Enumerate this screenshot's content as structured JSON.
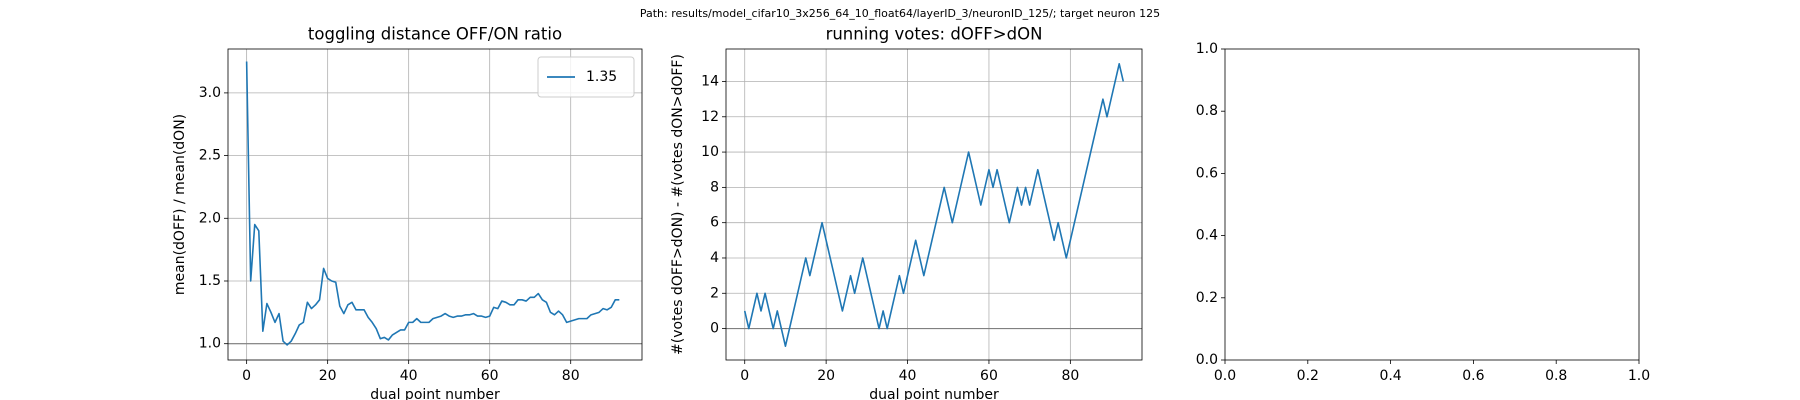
{
  "suptitle": "Path: results/model_cifar10_3x256_64_10_float64/layerID_3/neuronID_125/; target neuron 125",
  "chart_data": [
    {
      "type": "line",
      "title": "toggling distance OFF/ON ratio",
      "xlabel": "dual point number",
      "ylabel": "mean(dOFF) / mean(dON)",
      "x": [
        0,
        1,
        2,
        3,
        4,
        5,
        6,
        7,
        8,
        9,
        10,
        11,
        12,
        13,
        14,
        15,
        16,
        17,
        18,
        19,
        20,
        21,
        22,
        23,
        24,
        25,
        26,
        27,
        28,
        29,
        30,
        31,
        32,
        33,
        34,
        35,
        36,
        37,
        38,
        39,
        40,
        41,
        42,
        43,
        44,
        45,
        46,
        47,
        48,
        49,
        50,
        51,
        52,
        53,
        54,
        55,
        56,
        57,
        58,
        59,
        60,
        61,
        62,
        63,
        64,
        65,
        66,
        67,
        68,
        69,
        70,
        71,
        72,
        73,
        74,
        75,
        76,
        77,
        78,
        79,
        80,
        81,
        82,
        83,
        84,
        85,
        86,
        87,
        88,
        89,
        90,
        91,
        92
      ],
      "series": [
        {
          "name": "1.35",
          "color": "#1f77b4",
          "values": [
            3.25,
            1.5,
            1.95,
            1.9,
            1.1,
            1.32,
            1.25,
            1.17,
            1.24,
            1.02,
            0.99,
            1.02,
            1.08,
            1.15,
            1.17,
            1.33,
            1.28,
            1.31,
            1.35,
            1.6,
            1.52,
            1.5,
            1.49,
            1.3,
            1.24,
            1.31,
            1.33,
            1.27,
            1.27,
            1.27,
            1.21,
            1.17,
            1.12,
            1.04,
            1.05,
            1.03,
            1.07,
            1.09,
            1.11,
            1.11,
            1.17,
            1.17,
            1.2,
            1.17,
            1.17,
            1.17,
            1.2,
            1.21,
            1.22,
            1.24,
            1.22,
            1.21,
            1.22,
            1.22,
            1.23,
            1.23,
            1.24,
            1.22,
            1.22,
            1.21,
            1.22,
            1.29,
            1.28,
            1.34,
            1.33,
            1.31,
            1.31,
            1.35,
            1.35,
            1.34,
            1.37,
            1.37,
            1.4,
            1.35,
            1.33,
            1.25,
            1.23,
            1.26,
            1.23,
            1.17,
            1.18,
            1.19,
            1.2,
            1.2,
            1.2,
            1.23,
            1.24,
            1.25,
            1.28,
            1.27,
            1.29,
            1.35,
            1.35
          ]
        }
      ],
      "hline": 1,
      "hline_color": "#808080",
      "xlim": [
        -4.6,
        97.6
      ],
      "ylim": [
        0.87,
        3.35
      ],
      "xticks": [
        0,
        20,
        40,
        60,
        80
      ],
      "yticks": [
        {
          "value": 1,
          "label": "1.0"
        },
        {
          "value": 1.5,
          "label": "1.5"
        },
        {
          "value": 2,
          "label": "2.0"
        },
        {
          "value": 2.5,
          "label": "2.5"
        },
        {
          "value": 3,
          "label": "3.0"
        }
      ],
      "grid": true,
      "legend": "upper right"
    },
    {
      "type": "line",
      "title": "running votes: dOFF>dON",
      "xlabel": "dual point number",
      "ylabel": "#(votes dOFF>dON) - #(votes dON>dOFF)",
      "x": [
        0,
        1,
        2,
        3,
        4,
        5,
        6,
        7,
        8,
        9,
        10,
        11,
        12,
        13,
        14,
        15,
        16,
        17,
        18,
        19,
        20,
        21,
        22,
        23,
        24,
        25,
        26,
        27,
        28,
        29,
        30,
        31,
        32,
        33,
        34,
        35,
        36,
        37,
        38,
        39,
        40,
        41,
        42,
        43,
        44,
        45,
        46,
        47,
        48,
        49,
        50,
        51,
        52,
        53,
        54,
        55,
        56,
        57,
        58,
        59,
        60,
        61,
        62,
        63,
        64,
        65,
        66,
        67,
        68,
        69,
        70,
        71,
        72,
        73,
        74,
        75,
        76,
        77,
        78,
        79,
        80,
        81,
        82,
        83,
        84,
        85,
        86,
        87,
        88,
        89,
        90,
        91,
        92,
        93
      ],
      "values": [
        1,
        0,
        1,
        2,
        1,
        2,
        1,
        0,
        1,
        0,
        -1,
        0,
        1,
        2,
        3,
        4,
        3,
        4,
        5,
        6,
        5,
        4,
        3,
        2,
        1,
        2,
        3,
        2,
        3,
        4,
        3,
        2,
        1,
        0,
        1,
        0,
        1,
        2,
        3,
        2,
        3,
        4,
        5,
        4,
        3,
        4,
        5,
        6,
        7,
        8,
        7,
        6,
        7,
        8,
        9,
        10,
        9,
        8,
        7,
        8,
        9,
        8,
        9,
        8,
        7,
        6,
        7,
        8,
        7,
        8,
        7,
        8,
        9,
        8,
        7,
        6,
        5,
        6,
        5,
        4,
        5,
        6,
        7,
        8,
        9,
        10,
        11,
        12,
        13,
        12,
        13,
        14,
        15,
        14
      ],
      "color": "#1f77b4",
      "hline": 0,
      "hline_color": "#808080",
      "xlim": [
        -4.6,
        97.6
      ],
      "ylim": [
        -1.78,
        15.84
      ],
      "xticks": [
        0,
        20,
        40,
        60,
        80
      ],
      "yticks": [
        0,
        2,
        4,
        6,
        8,
        10,
        12,
        14
      ],
      "grid": true
    },
    {
      "type": "empty",
      "xlim": [
        0,
        1
      ],
      "ylim": [
        0,
        1
      ],
      "xticks": [
        {
          "value": 0,
          "label": "0.0"
        },
        {
          "value": 0.2,
          "label": "0.2"
        },
        {
          "value": 0.4,
          "label": "0.4"
        },
        {
          "value": 0.6,
          "label": "0.6"
        },
        {
          "value": 0.8,
          "label": "0.8"
        },
        {
          "value": 1,
          "label": "1.0"
        }
      ],
      "yticks": [
        {
          "value": 0,
          "label": "0.0"
        },
        {
          "value": 0.2,
          "label": "0.2"
        },
        {
          "value": 0.4,
          "label": "0.4"
        },
        {
          "value": 0.6,
          "label": "0.6"
        },
        {
          "value": 0.8,
          "label": "0.8"
        },
        {
          "value": 1,
          "label": "1.0"
        }
      ],
      "grid": false
    }
  ]
}
